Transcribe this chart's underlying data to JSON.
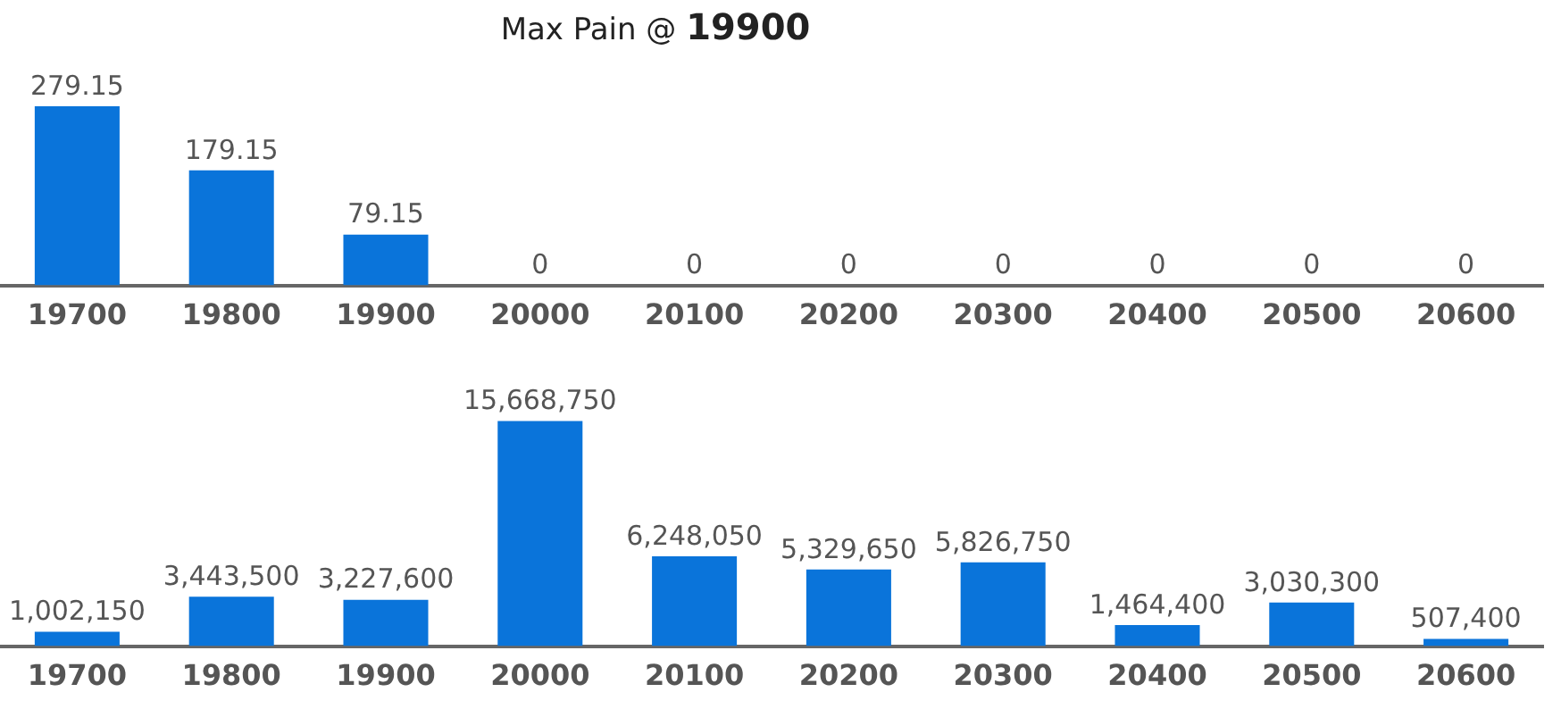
{
  "chart_data": [
    {
      "type": "bar",
      "title": "Max Pain @ 19900",
      "categories": [
        "19700",
        "19800",
        "19900",
        "20000",
        "20100",
        "20200",
        "20300",
        "20400",
        "20500",
        "20600"
      ],
      "values": [
        279.15,
        179.15,
        79.15,
        0,
        0,
        0,
        0,
        0,
        0,
        0
      ],
      "color": "#0a74da",
      "data_labels": true,
      "tick_labels": "x"
    },
    {
      "type": "bar",
      "categories": [
        "19700",
        "19800",
        "19900",
        "20000",
        "20100",
        "20200",
        "20300",
        "20400",
        "20500",
        "20600"
      ],
      "values": [
        1002150,
        3443500,
        3227600,
        15668750,
        6248050,
        5329650,
        5826750,
        1464400,
        3030300,
        507400
      ],
      "color": "#0a74da",
      "value_labels": [
        "1,002,150",
        "3,443,500",
        "3,227,600",
        "15,668,750",
        "6,248,050",
        "5,329,650",
        "5,826,750",
        "1,464,400",
        "3,030,300",
        "507,400"
      ],
      "tick_labels": "x"
    }
  ]
}
